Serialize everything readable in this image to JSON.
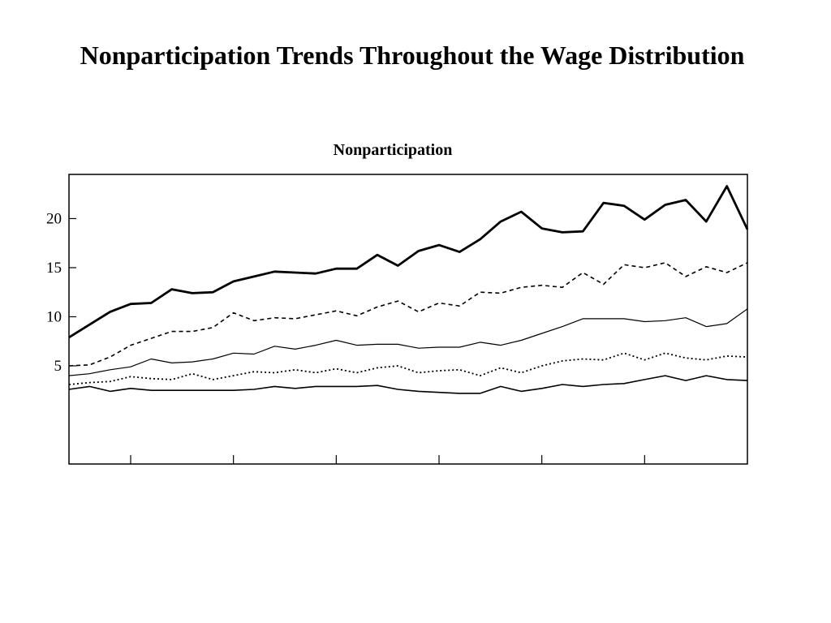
{
  "slide": {
    "title": "Nonparticipation Trends Throughout the Wage Distribution"
  },
  "chart_data": {
    "type": "line",
    "title": "Nonparticipation",
    "xlabel": "",
    "ylabel": "",
    "ylim": [
      -5,
      24.5
    ],
    "yticks": [
      5,
      10,
      15,
      20
    ],
    "x_tick_count": 6,
    "grid": false,
    "legend": "none",
    "x": [
      0,
      1,
      2,
      3,
      4,
      5,
      6,
      7,
      8,
      9,
      10,
      11,
      12,
      13,
      14,
      15,
      16,
      17,
      18,
      19,
      20,
      21,
      22,
      23,
      24,
      25,
      26,
      27,
      28,
      29,
      30,
      31,
      32,
      33
    ],
    "series": [
      {
        "style": "thick-solid",
        "values": [
          7.9,
          9.2,
          10.5,
          11.3,
          11.4,
          12.8,
          12.4,
          12.5,
          13.6,
          14.1,
          14.6,
          14.5,
          14.4,
          14.9,
          14.9,
          16.3,
          15.2,
          16.7,
          17.3,
          16.6,
          17.9,
          19.7,
          20.7,
          19.0,
          18.6,
          18.7,
          21.6,
          21.3,
          19.9,
          21.4,
          21.9,
          19.7,
          23.3,
          18.9
        ]
      },
      {
        "style": "dashed",
        "values": [
          5.0,
          5.1,
          5.9,
          7.1,
          7.8,
          8.5,
          8.5,
          8.9,
          10.4,
          9.6,
          9.9,
          9.8,
          10.2,
          10.6,
          10.1,
          11.0,
          11.6,
          10.5,
          11.4,
          11.1,
          12.5,
          12.4,
          13.0,
          13.2,
          13.0,
          14.5,
          13.3,
          15.3,
          15.0,
          15.5,
          14.1,
          15.1,
          14.5,
          15.5
        ]
      },
      {
        "style": "thin-solid",
        "values": [
          4.0,
          4.2,
          4.6,
          4.9,
          5.7,
          5.3,
          5.4,
          5.7,
          6.3,
          6.2,
          7.0,
          6.7,
          7.1,
          7.6,
          7.1,
          7.2,
          7.2,
          6.8,
          6.9,
          6.9,
          7.4,
          7.1,
          7.6,
          8.3,
          9.0,
          9.8,
          9.8,
          9.8,
          9.5,
          9.6,
          9.9,
          9.0,
          9.3,
          10.8
        ]
      },
      {
        "style": "dotted",
        "values": [
          3.1,
          3.3,
          3.4,
          3.9,
          3.7,
          3.6,
          4.2,
          3.6,
          4.0,
          4.4,
          4.3,
          4.6,
          4.3,
          4.7,
          4.3,
          4.8,
          5.0,
          4.3,
          4.5,
          4.6,
          4.0,
          4.8,
          4.3,
          5.0,
          5.5,
          5.7,
          5.6,
          6.3,
          5.6,
          6.3,
          5.8,
          5.6,
          6.0,
          5.9
        ]
      },
      {
        "style": "solid",
        "values": [
          2.6,
          2.9,
          2.4,
          2.7,
          2.5,
          2.5,
          2.5,
          2.5,
          2.5,
          2.6,
          2.9,
          2.7,
          2.9,
          2.9,
          2.9,
          3.0,
          2.6,
          2.4,
          2.3,
          2.2,
          2.2,
          2.9,
          2.4,
          2.7,
          3.1,
          2.9,
          3.1,
          3.2,
          3.6,
          4.0,
          3.5,
          4.0,
          3.6,
          3.5
        ]
      }
    ]
  }
}
